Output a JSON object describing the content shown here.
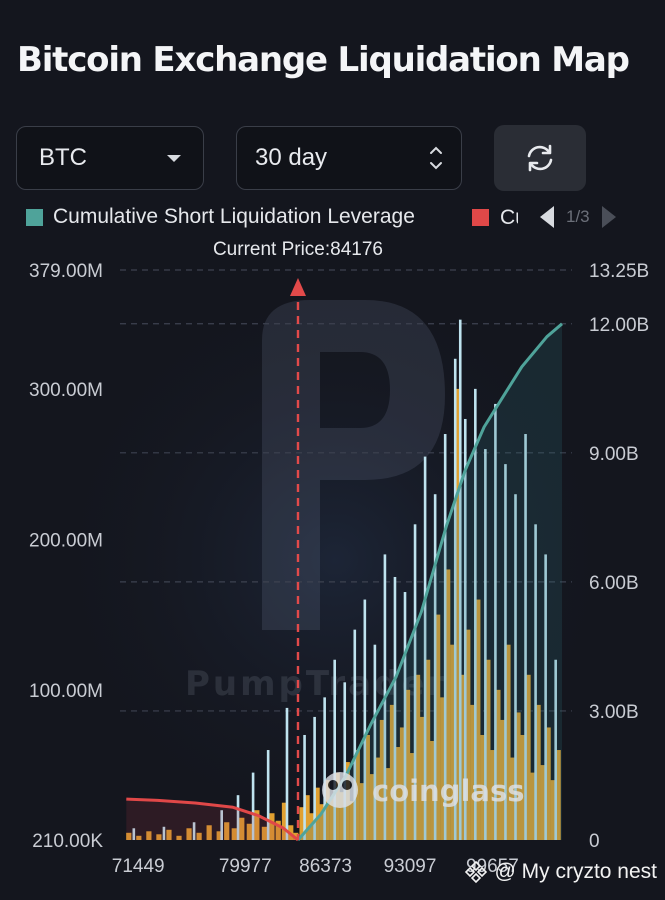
{
  "title": "Bitcoin Exchange Liquidation Map",
  "controls": {
    "asset": "BTC",
    "period": "30 day"
  },
  "legend": {
    "items": [
      {
        "label": "Cumulative Short Liquidation Leverage",
        "color": "#4fa39a"
      },
      {
        "label": "Cu",
        "color": "#e04848"
      }
    ],
    "page": "1/3"
  },
  "icons": {
    "asset_dropdown": "chevron-down-icon",
    "period_stepper": "up-down-stepper-icon",
    "refresh": "refresh-icon",
    "legend_prev": "triangle-left-icon",
    "legend_next": "triangle-right-icon",
    "binance_square": "binance-square-logo"
  },
  "watermarks": {
    "center": "coinglass",
    "faint": "PumpTraders",
    "footer": "@ My cryzto nest"
  },
  "colors": {
    "background": "#14161e",
    "short_cumulative": "#4fa39a",
    "long_cumulative": "#e04848",
    "bar_orange": "#e0a030",
    "bar_light_blue": "#bfe3ef",
    "current_price_marker": "#e24a4a"
  },
  "chart_data": {
    "type": "bar",
    "annotation": "Current Price:84176",
    "current_price": 84176,
    "x_ticks": [
      "71449",
      "79977",
      "86373",
      "93097",
      "99657"
    ],
    "x_range": [
      70000,
      106000
    ],
    "y_left": {
      "ticks": [
        "379.00M",
        "300.00M",
        "200.00M",
        "100.00M",
        "210.00K"
      ],
      "range": [
        210000,
        379000000
      ]
    },
    "y_right": {
      "ticks": [
        "13.25B",
        "12.00B",
        "9.00B",
        "6.00B",
        "3.00B",
        "0"
      ],
      "range": [
        0,
        13250000000
      ]
    },
    "grid": true,
    "series": [
      {
        "name": "Cumulative Short Liquidation Leverage",
        "type": "line",
        "axis": "right",
        "color": "#4fa39a",
        "x": [
          84176,
          86000,
          88000,
          90000,
          92000,
          94000,
          96000,
          97500,
          99000,
          100500,
          102000,
          104000,
          105200
        ],
        "y": [
          0,
          600000000,
          1500000000,
          2700000000,
          3800000000,
          5300000000,
          7300000000,
          8600000000,
          9600000000,
          10300000000,
          11000000000,
          11700000000,
          12000000000
        ]
      },
      {
        "name": "Cu",
        "type": "line",
        "axis": "right",
        "color": "#e04848",
        "x": [
          70500,
          73000,
          76000,
          79000,
          81000,
          83000,
          84176
        ],
        "y": [
          950000000,
          920000000,
          860000000,
          760000000,
          570000000,
          280000000,
          0
        ]
      },
      {
        "type": "bar",
        "axis": "left",
        "color": "#e0a030",
        "x": [
          70700,
          71500,
          72300,
          73100,
          73900,
          74700,
          75500,
          76300,
          77100,
          77900,
          78500,
          79100,
          79700,
          80300,
          80900,
          81500,
          82100,
          82600,
          83100,
          83600,
          84000,
          84500,
          84900,
          85300,
          85700,
          86100,
          86500,
          86900,
          87300,
          87700,
          88100,
          88500,
          88900,
          89300,
          89700,
          90100,
          90500,
          90900,
          91300,
          91700,
          92100,
          92500,
          92900,
          93300,
          93700,
          94100,
          94500,
          94900,
          95300,
          95700,
          96100,
          96500,
          96900,
          97300,
          97700,
          98100,
          98500,
          98900,
          99300,
          99700,
          100100,
          100500,
          100900,
          101300,
          101700,
          102100,
          102500,
          102900,
          103300,
          103700,
          104100,
          104500,
          104900
        ],
        "y": [
          5000000,
          3000000,
          6000000,
          4000000,
          7000000,
          3000000,
          8000000,
          5000000,
          10000000,
          6000000,
          12000000,
          8000000,
          15000000,
          11000000,
          20000000,
          9000000,
          18000000,
          13000000,
          25000000,
          10000000,
          5000000,
          22000000,
          30000000,
          18000000,
          35000000,
          24000000,
          40000000,
          28000000,
          45000000,
          32000000,
          52000000,
          26000000,
          60000000,
          38000000,
          70000000,
          44000000,
          55000000,
          80000000,
          48000000,
          90000000,
          62000000,
          75000000,
          100000000,
          58000000,
          110000000,
          82000000,
          120000000,
          66000000,
          150000000,
          95000000,
          180000000,
          130000000,
          300000000,
          110000000,
          140000000,
          90000000,
          160000000,
          70000000,
          120000000,
          60000000,
          100000000,
          80000000,
          130000000,
          55000000,
          85000000,
          70000000,
          110000000,
          45000000,
          90000000,
          50000000,
          75000000,
          40000000,
          60000000
        ]
      },
      {
        "type": "bar",
        "axis": "left",
        "color": "#bfe3ef",
        "x": [
          71100,
          73500,
          75900,
          78100,
          79400,
          80600,
          81800,
          83300,
          84700,
          85500,
          86300,
          87100,
          87900,
          88700,
          89500,
          90300,
          91100,
          91900,
          92700,
          93500,
          94300,
          95100,
          95900,
          96700,
          97100,
          97500,
          98300,
          99100,
          99900,
          100700,
          101500,
          102300,
          103100,
          103900,
          104700
        ],
        "y": [
          8000000,
          9000000,
          12000000,
          20000000,
          30000000,
          45000000,
          60000000,
          88000000,
          70000000,
          82000000,
          95000000,
          120000000,
          105000000,
          140000000,
          160000000,
          130000000,
          190000000,
          175000000,
          165000000,
          210000000,
          255000000,
          230000000,
          270000000,
          320000000,
          346000000,
          280000000,
          300000000,
          260000000,
          290000000,
          250000000,
          230000000,
          270000000,
          210000000,
          190000000,
          120000000
        ]
      }
    ]
  }
}
